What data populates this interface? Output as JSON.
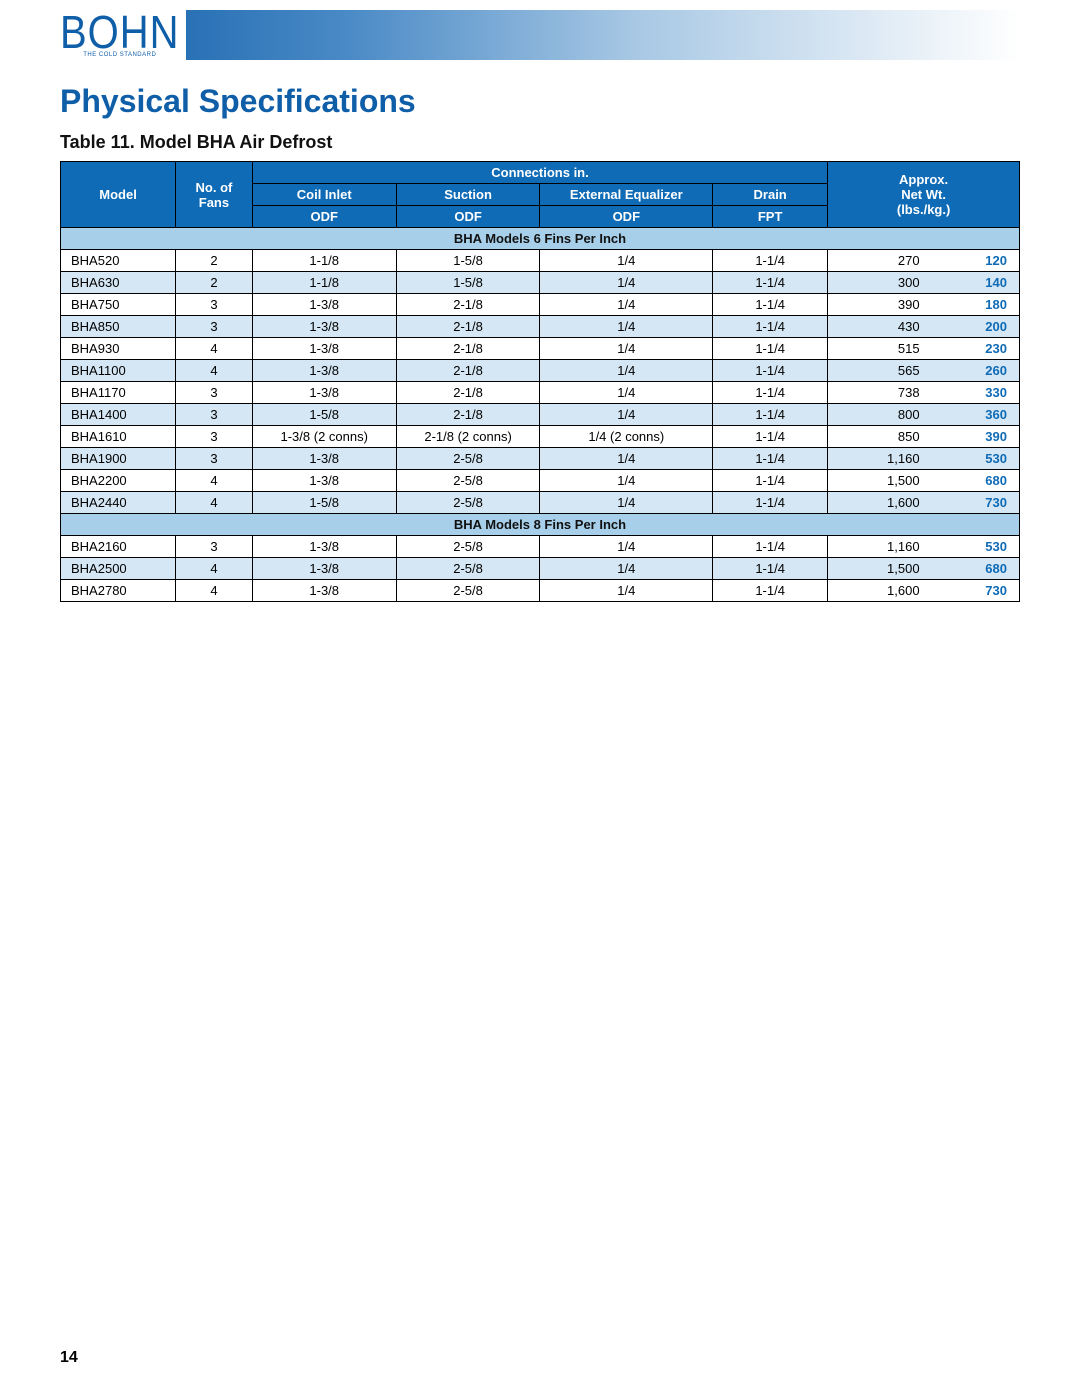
{
  "brand": {
    "name": "BOHN",
    "tagline": "THE COLD STANDARD"
  },
  "section_title": "Physical Specifications",
  "table_title": "Table 11. Model BHA Air Defrost",
  "page_number": "14",
  "styling": {
    "brand_color": "#0f5ea8",
    "header_bg": "#0f6bb6",
    "header_fg": "#ffffff",
    "section_bg": "#a7cfe9",
    "alt_row_bg": "#d5e7f4",
    "kg_color": "#0f6bb6",
    "border_color": "#000000",
    "font_size_body": 13,
    "font_size_section_title": 32,
    "font_size_table_title": 18,
    "gradient_from": "#0f5ea8",
    "gradient_to": "#ffffff"
  },
  "table": {
    "headers": {
      "model": "Model",
      "fans": {
        "l1": "No. of",
        "l2": "Fans"
      },
      "connections": "Connections in.",
      "coil": {
        "l1": "Coil Inlet",
        "l2": "ODF"
      },
      "suction": {
        "l1": "Suction",
        "l2": "ODF"
      },
      "ext_eq": {
        "l1": "External Equalizer",
        "l2": "ODF"
      },
      "drain": {
        "l1": "Drain",
        "l2": "FPT"
      },
      "wt": {
        "l1": "Approx.",
        "l2": "Net Wt.",
        "l3": "(lbs./kg.)"
      }
    },
    "col_widths_pct": [
      12,
      8,
      15,
      15,
      18,
      12,
      10,
      10
    ],
    "sections": [
      {
        "label": "BHA Models 6 Fins Per Inch",
        "rows": [
          {
            "model": "BHA520",
            "fans": "2",
            "coil": "1-1/8",
            "suction": "1-5/8",
            "ext": "1/4",
            "drain": "1-1/4",
            "lbs": "270",
            "kg": "120"
          },
          {
            "model": "BHA630",
            "fans": "2",
            "coil": "1-1/8",
            "suction": "1-5/8",
            "ext": "1/4",
            "drain": "1-1/4",
            "lbs": "300",
            "kg": "140"
          },
          {
            "model": "BHA750",
            "fans": "3",
            "coil": "1-3/8",
            "suction": "2-1/8",
            "ext": "1/4",
            "drain": "1-1/4",
            "lbs": "390",
            "kg": "180"
          },
          {
            "model": "BHA850",
            "fans": "3",
            "coil": "1-3/8",
            "suction": "2-1/8",
            "ext": "1/4",
            "drain": "1-1/4",
            "lbs": "430",
            "kg": "200"
          },
          {
            "model": "BHA930",
            "fans": "4",
            "coil": "1-3/8",
            "suction": "2-1/8",
            "ext": "1/4",
            "drain": "1-1/4",
            "lbs": "515",
            "kg": "230"
          },
          {
            "model": "BHA1100",
            "fans": "4",
            "coil": "1-3/8",
            "suction": "2-1/8",
            "ext": "1/4",
            "drain": "1-1/4",
            "lbs": "565",
            "kg": "260"
          },
          {
            "model": "BHA1170",
            "fans": "3",
            "coil": "1-3/8",
            "suction": "2-1/8",
            "ext": "1/4",
            "drain": "1-1/4",
            "lbs": "738",
            "kg": "330"
          },
          {
            "model": "BHA1400",
            "fans": "3",
            "coil": "1-5/8",
            "suction": "2-1/8",
            "ext": "1/4",
            "drain": "1-1/4",
            "lbs": "800",
            "kg": "360"
          },
          {
            "model": "BHA1610",
            "fans": "3",
            "coil": "1-3/8 (2 conns)",
            "suction": "2-1/8 (2 conns)",
            "ext": "1/4 (2 conns)",
            "drain": "1-1/4",
            "lbs": "850",
            "kg": "390"
          },
          {
            "model": "BHA1900",
            "fans": "3",
            "coil": "1-3/8",
            "suction": "2-5/8",
            "ext": "1/4",
            "drain": "1-1/4",
            "lbs": "1,160",
            "kg": "530"
          },
          {
            "model": "BHA2200",
            "fans": "4",
            "coil": "1-3/8",
            "suction": "2-5/8",
            "ext": "1/4",
            "drain": "1-1/4",
            "lbs": "1,500",
            "kg": "680"
          },
          {
            "model": "BHA2440",
            "fans": "4",
            "coil": "1-5/8",
            "suction": "2-5/8",
            "ext": "1/4",
            "drain": "1-1/4",
            "lbs": "1,600",
            "kg": "730"
          }
        ]
      },
      {
        "label": "BHA Models 8 Fins Per Inch",
        "rows": [
          {
            "model": "BHA2160",
            "fans": "3",
            "coil": "1-3/8",
            "suction": "2-5/8",
            "ext": "1/4",
            "drain": "1-1/4",
            "lbs": "1,160",
            "kg": "530"
          },
          {
            "model": "BHA2500",
            "fans": "4",
            "coil": "1-3/8",
            "suction": "2-5/8",
            "ext": "1/4",
            "drain": "1-1/4",
            "lbs": "1,500",
            "kg": "680"
          },
          {
            "model": "BHA2780",
            "fans": "4",
            "coil": "1-3/8",
            "suction": "2-5/8",
            "ext": "1/4",
            "drain": "1-1/4",
            "lbs": "1,600",
            "kg": "730"
          }
        ]
      }
    ]
  }
}
